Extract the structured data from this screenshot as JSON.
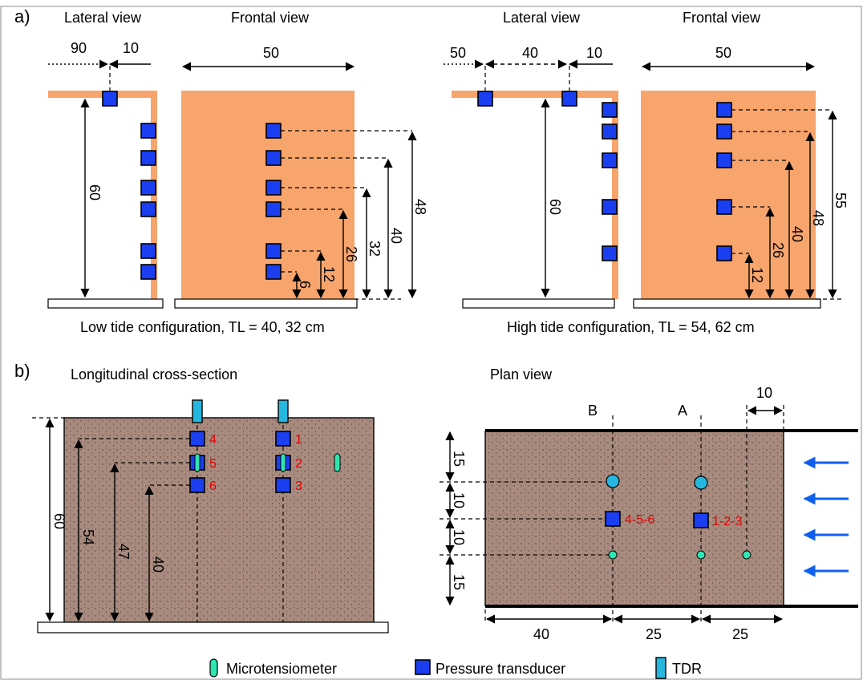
{
  "panel_a": {
    "label": "a)",
    "left": {
      "lateral_title": "Lateral view",
      "frontal_title": "Frontal view",
      "dims_top": [
        "90",
        "10",
        "50"
      ],
      "height_dim": "60",
      "frontal_dims": [
        "6",
        "12",
        "26",
        "32",
        "40",
        "48"
      ],
      "caption": "Low tide configuration, TL = 40, 32 cm"
    },
    "right": {
      "lateral_title": "Lateral view",
      "frontal_title": "Frontal view",
      "dims_top": [
        "50",
        "40",
        "10",
        "50"
      ],
      "height_dim": "60",
      "frontal_dims": [
        "12",
        "26",
        "40",
        "48",
        "55"
      ],
      "caption": "High tide configuration, TL = 54, 62 cm"
    }
  },
  "panel_b": {
    "label": "b)",
    "cross_section": {
      "title": "Longitudinal cross-section",
      "sensor_labels": [
        "4",
        "5",
        "6",
        "1",
        "2",
        "3"
      ],
      "height_dim": "60",
      "depth_dims": [
        "54",
        "47",
        "40"
      ]
    },
    "plan_view": {
      "title": "Plan view",
      "line_labels": [
        "B",
        "A"
      ],
      "top_dim": "10",
      "side_dims": [
        "15",
        "10",
        "10",
        "15"
      ],
      "bottom_dims": [
        "40",
        "25",
        "25"
      ],
      "group_labels": [
        "4-5-6",
        "1-2-3"
      ]
    }
  },
  "legend": {
    "microtensiometer": "Microtensiometer",
    "pressure_transducer": "Pressure transducer",
    "tdr": "TDR"
  },
  "colors": {
    "orange": "#f7a46d",
    "soil": "#a88b7e",
    "transducer": "#1a3ef0",
    "tdr": "#26b7e0",
    "microtensiometer": "#2ee6b0",
    "label_red": "#e00000",
    "arrow_blue": "#1060f0"
  }
}
